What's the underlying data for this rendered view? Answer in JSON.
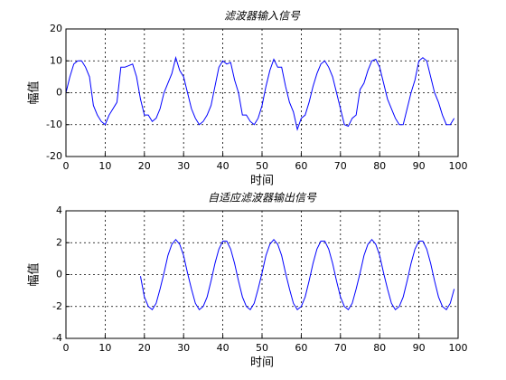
{
  "chart_data": [
    {
      "type": "line",
      "title": "滤波器输入信号",
      "xlabel": "时间",
      "ylabel": "幅值",
      "color": "#0000ff",
      "grid": true,
      "xlim": [
        0,
        100
      ],
      "xticks": [
        0,
        10,
        20,
        30,
        40,
        50,
        60,
        70,
        80,
        90,
        100
      ],
      "ylim": [
        -20,
        20
      ],
      "yticks": [
        -20,
        -10,
        0,
        10,
        20
      ],
      "x": [
        0,
        1,
        2,
        3,
        4,
        5,
        6,
        7,
        8,
        9,
        10,
        11,
        12,
        13,
        14,
        15,
        16,
        17,
        18,
        19,
        20,
        21,
        22,
        23,
        24,
        25,
        26,
        27,
        28,
        29,
        30,
        31,
        32,
        33,
        34,
        35,
        36,
        37,
        38,
        39,
        40,
        41,
        42,
        43,
        44,
        45,
        46,
        47,
        48,
        49,
        50,
        51,
        52,
        53,
        54,
        55,
        56,
        57,
        58,
        59,
        60,
        61,
        62,
        63,
        64,
        65,
        66,
        67,
        68,
        69,
        70,
        71,
        72,
        73,
        74,
        75,
        76,
        77,
        78,
        79,
        80,
        81,
        82,
        83,
        84,
        85,
        86,
        87,
        88,
        89,
        90,
        91,
        92,
        93,
        94,
        95,
        96,
        97,
        98,
        99
      ],
      "values": [
        0,
        5,
        9,
        10,
        10,
        8,
        5,
        -4,
        -7,
        -9,
        -10,
        -7,
        -5,
        -3,
        8,
        8,
        8.5,
        9,
        5,
        -2,
        -7,
        -7,
        -9,
        -8,
        -5,
        0,
        3,
        6,
        11,
        7,
        5,
        0,
        -5,
        -8,
        -10,
        -9,
        -7,
        -4,
        2,
        8,
        10,
        9,
        9.5,
        4,
        0,
        -7,
        -7,
        -9,
        -10,
        -8,
        -4,
        2,
        7,
        10.5,
        8,
        8,
        2,
        -3,
        -6,
        -11.5,
        -8,
        -7,
        -3,
        2,
        6,
        9,
        10,
        8,
        5,
        0,
        -5,
        -10,
        -10.5,
        -8,
        -7,
        1,
        3,
        7,
        10,
        10.5,
        8,
        3,
        -2,
        -5,
        -8,
        -10,
        -10,
        -5,
        0,
        4,
        10,
        11,
        10,
        5,
        0,
        -3,
        -7,
        -10,
        -10,
        -8
      ]
    },
    {
      "type": "line",
      "title": "自适应滤波器输出信号",
      "xlabel": "时间",
      "ylabel": "幅值",
      "color": "#0000ff",
      "grid": true,
      "xlim": [
        0,
        100
      ],
      "xticks": [
        0,
        10,
        20,
        30,
        40,
        50,
        60,
        70,
        80,
        90,
        100
      ],
      "ylim": [
        -4,
        4
      ],
      "yticks": [
        -4,
        -2,
        0,
        2,
        4
      ],
      "x": [
        19,
        20,
        21,
        22,
        23,
        24,
        25,
        26,
        27,
        28,
        29,
        30,
        31,
        32,
        33,
        34,
        35,
        36,
        37,
        38,
        39,
        40,
        41,
        42,
        43,
        44,
        45,
        46,
        47,
        48,
        49,
        50,
        51,
        52,
        53,
        54,
        55,
        56,
        57,
        58,
        59,
        60,
        61,
        62,
        63,
        64,
        65,
        66,
        67,
        68,
        69,
        70,
        71,
        72,
        73,
        74,
        75,
        76,
        77,
        78,
        79,
        80,
        81,
        82,
        83,
        84,
        85,
        86,
        87,
        88,
        89,
        90,
        91,
        92,
        93,
        94,
        95,
        96,
        97,
        98,
        99
      ],
      "values": [
        -0.1,
        -1.4,
        -2.0,
        -2.2,
        -1.8,
        -0.9,
        0.1,
        1.2,
        1.9,
        2.2,
        1.9,
        1.2,
        0.1,
        -0.9,
        -1.8,
        -2.2,
        -2.0,
        -1.4,
        -0.4,
        0.7,
        1.6,
        2.1,
        2.1,
        1.6,
        0.7,
        -0.4,
        -1.4,
        -2.0,
        -2.2,
        -1.8,
        -0.9,
        0.1,
        1.2,
        1.9,
        2.2,
        1.9,
        1.2,
        0.1,
        -0.9,
        -1.8,
        -2.2,
        -2.0,
        -1.4,
        -0.4,
        0.7,
        1.6,
        2.1,
        2.1,
        1.6,
        0.7,
        -0.4,
        -1.4,
        -2.0,
        -2.2,
        -1.8,
        -0.9,
        0.1,
        1.2,
        1.9,
        2.2,
        1.9,
        1.2,
        0.1,
        -0.9,
        -1.8,
        -2.2,
        -2.0,
        -1.4,
        -0.4,
        0.7,
        1.6,
        2.1,
        2.1,
        1.6,
        0.7,
        -0.4,
        -1.4,
        -2.0,
        -2.2,
        -1.8,
        -0.9
      ]
    }
  ]
}
